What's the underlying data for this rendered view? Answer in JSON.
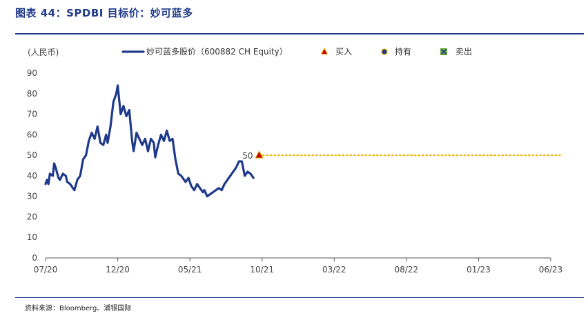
{
  "header": {
    "title": "图表 44：SPDBI 目标价：妙可蓝多"
  },
  "source": "资料来源：Bloomberg、浦银国际",
  "chart_data": {
    "type": "line",
    "ylabel": "(人民币)",
    "ylim": [
      0,
      90
    ],
    "yticks": [
      0,
      10,
      20,
      30,
      40,
      50,
      60,
      70,
      80,
      90
    ],
    "xlim": [
      "2020-07",
      "2023-06"
    ],
    "xticks": [
      "07/20",
      "12/20",
      "05/21",
      "10/21",
      "03/22",
      "08/22",
      "01/23",
      "06/23"
    ],
    "grid": false,
    "legend_position": "top",
    "series": [
      {
        "name": "妙可蓝多股价（600882 CH Equity）",
        "color": "#1f3a8a",
        "x": [
          0.0,
          0.1,
          0.2,
          0.3,
          0.5,
          0.6,
          0.7,
          0.9,
          1.0,
          1.2,
          1.4,
          1.5,
          1.7,
          1.9,
          2.0,
          2.2,
          2.4,
          2.6,
          2.8,
          3.0,
          3.2,
          3.4,
          3.6,
          3.8,
          4.0,
          4.2,
          4.3,
          4.5,
          4.7,
          4.9,
          5.0,
          5.2,
          5.4,
          5.6,
          5.8,
          6.0,
          6.1,
          6.3,
          6.5,
          6.7,
          6.9,
          7.1,
          7.3,
          7.5,
          7.6,
          7.8,
          8.0,
          8.2,
          8.4,
          8.6,
          8.8,
          9.0,
          9.2,
          9.4,
          9.6,
          9.7,
          9.9,
          10.1,
          10.3,
          10.5,
          10.7,
          10.9,
          11.0,
          11.2,
          11.4,
          11.6,
          11.8,
          12.0,
          12.2,
          12.4,
          12.6,
          12.8,
          13.0,
          13.2,
          13.4,
          13.6,
          13.8,
          14.0,
          14.2,
          14.4
        ],
        "values": [
          36,
          38,
          36,
          41,
          40,
          46,
          44,
          39,
          38,
          41,
          40,
          37,
          36,
          34,
          33,
          38,
          40,
          48,
          50,
          57,
          61,
          58,
          64,
          56,
          55,
          60,
          56,
          64,
          76,
          80,
          84,
          70,
          74,
          69,
          72,
          57,
          52,
          61,
          58,
          55,
          58,
          52,
          58,
          56,
          49,
          55,
          60,
          57,
          62,
          57,
          58,
          48,
          41,
          40,
          38,
          37,
          39,
          35,
          33,
          36,
          34,
          32,
          33,
          30,
          31,
          32,
          33,
          34,
          33,
          36,
          38,
          40,
          42,
          44,
          47,
          47,
          40,
          42,
          41,
          39
        ]
      },
      {
        "name": "买入",
        "color": "#c00000",
        "x": [
          14.8
        ],
        "values": [
          50
        ]
      },
      {
        "name": "持有",
        "color": "#1f3a8a",
        "x": [],
        "values": []
      },
      {
        "name": "卖出",
        "color": "#6aaa3a",
        "x": [],
        "values": []
      }
    ],
    "target_line": {
      "value": 50,
      "label": "50",
      "color": "#f0b400"
    },
    "annotations": [
      "50"
    ]
  }
}
